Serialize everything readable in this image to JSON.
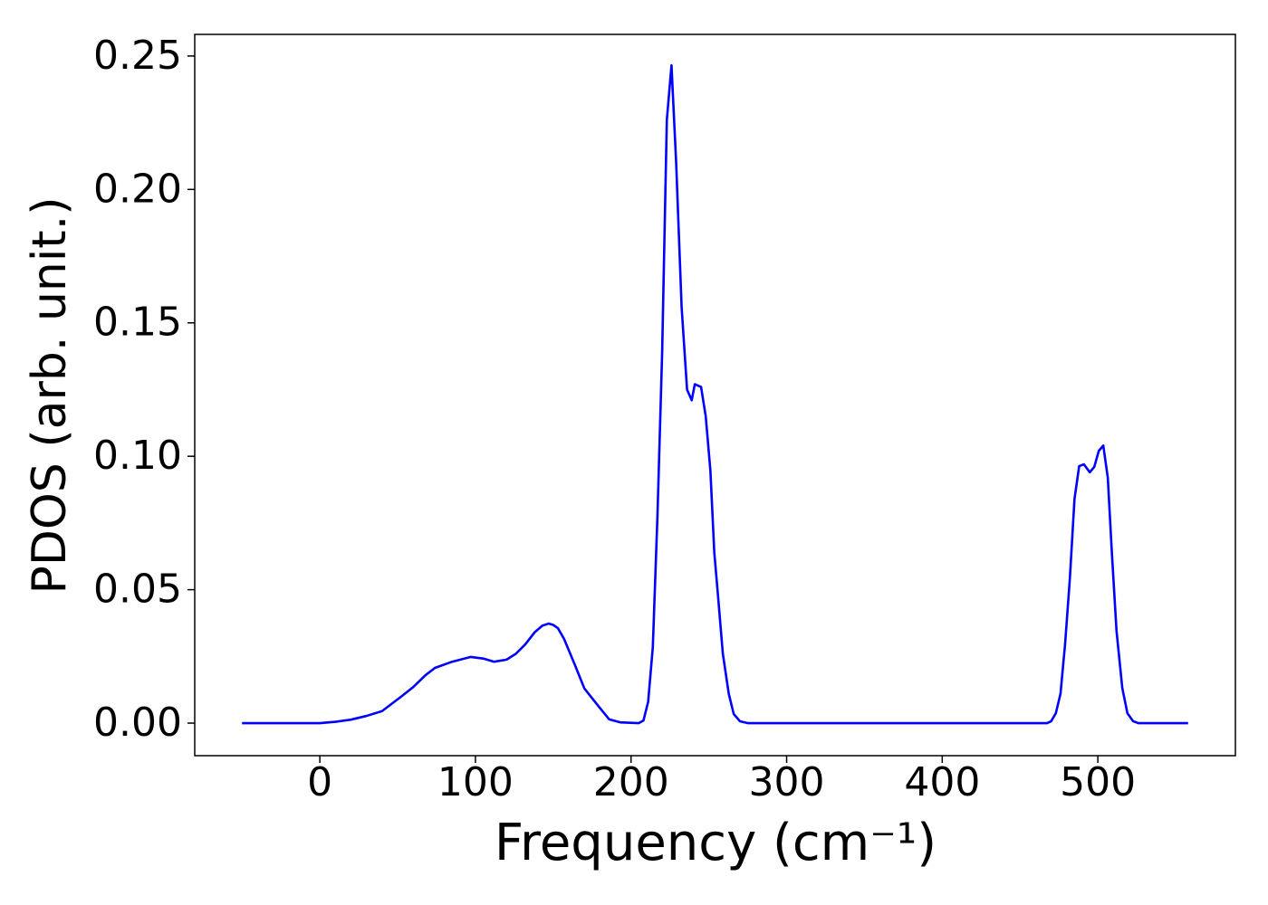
{
  "chart_data": {
    "type": "line",
    "xlabel": "Frequency (cm⁻¹)",
    "ylabel": "PDOS (arb. unit.)",
    "x": [
      -50,
      0,
      10,
      20,
      30,
      40,
      52,
      60,
      68,
      74,
      85,
      97,
      105,
      112,
      120,
      126,
      132,
      138,
      143,
      147,
      150,
      153,
      157,
      164,
      170,
      179,
      186,
      193,
      205,
      208,
      211,
      214,
      217,
      220,
      223,
      226,
      229,
      232.5,
      236,
      239,
      241,
      245,
      248,
      251,
      253.5,
      256,
      259,
      262.8,
      266,
      270,
      275,
      467.4,
      470,
      473,
      476,
      479,
      482,
      485,
      488,
      491,
      494.8,
      497.7,
      500.6,
      503.5,
      506.4,
      509,
      512,
      515.7,
      519,
      522.7,
      526,
      558
    ],
    "series": [
      {
        "name": "PDOS",
        "color": "#0000ff",
        "values": [
          0,
          0,
          0.0005,
          0.0013,
          0.0027,
          0.0045,
          0.0098,
          0.0135,
          0.018,
          0.0207,
          0.023,
          0.0248,
          0.0242,
          0.023,
          0.0238,
          0.026,
          0.0295,
          0.034,
          0.0365,
          0.0373,
          0.0368,
          0.0356,
          0.0315,
          0.0217,
          0.013,
          0.0064,
          0.0014,
          0.0003,
          0,
          0.001,
          0.008,
          0.0285,
          0.078,
          0.139,
          0.226,
          0.2465,
          0.21,
          0.156,
          0.125,
          0.121,
          0.127,
          0.126,
          0.115,
          0.0946,
          0.064,
          0.047,
          0.026,
          0.011,
          0.0034,
          0.0007,
          0,
          0,
          0.0007,
          0.0037,
          0.011,
          0.03,
          0.054,
          0.084,
          0.0963,
          0.097,
          0.094,
          0.096,
          0.102,
          0.104,
          0.092,
          0.064,
          0.0346,
          0.0132,
          0.0037,
          0.0007,
          0,
          0
        ]
      }
    ],
    "xlim": [
      -80.4,
      588.4
    ],
    "ylim": [
      -0.0122,
      0.2581
    ],
    "xticks": [
      0,
      100,
      200,
      300,
      400,
      500
    ],
    "yticks": [
      {
        "value": 0,
        "label": "0.00"
      },
      {
        "value": 0.05,
        "label": "0.05"
      },
      {
        "value": 0.1,
        "label": "0.10"
      },
      {
        "value": 0.15,
        "label": "0.15"
      },
      {
        "value": 0.2,
        "label": "0.20"
      },
      {
        "value": 0.25,
        "label": "0.25"
      }
    ],
    "grid": false
  }
}
